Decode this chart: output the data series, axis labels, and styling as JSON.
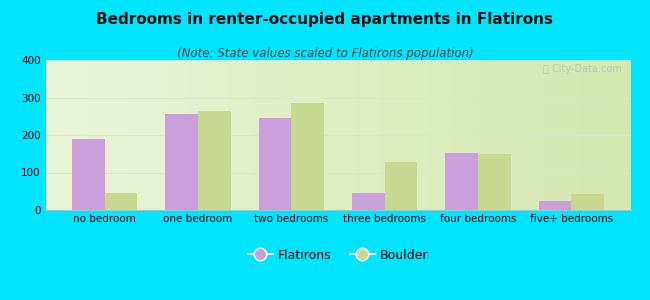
{
  "title": "Bedrooms in renter-occupied apartments in Flatirons",
  "subtitle": "(Note: State values scaled to Flatirons population)",
  "categories": [
    "no bedroom",
    "one bedroom",
    "two bedrooms",
    "three bedrooms",
    "four bedrooms",
    "five+ bedrooms"
  ],
  "flatirons_values": [
    190,
    257,
    246,
    45,
    152,
    25
  ],
  "boulder_values": [
    45,
    263,
    285,
    127,
    150,
    43
  ],
  "flatirons_color": "#c9a0dc",
  "boulder_color": "#c8d890",
  "ylim": [
    0,
    400
  ],
  "yticks": [
    0,
    100,
    200,
    300,
    400
  ],
  "bar_width": 0.35,
  "background_outer": "#00e5ff",
  "grid_color": "#d8e8c8",
  "title_fontsize": 11,
  "subtitle_fontsize": 8.5,
  "tick_fontsize": 7.5,
  "legend_fontsize": 9
}
